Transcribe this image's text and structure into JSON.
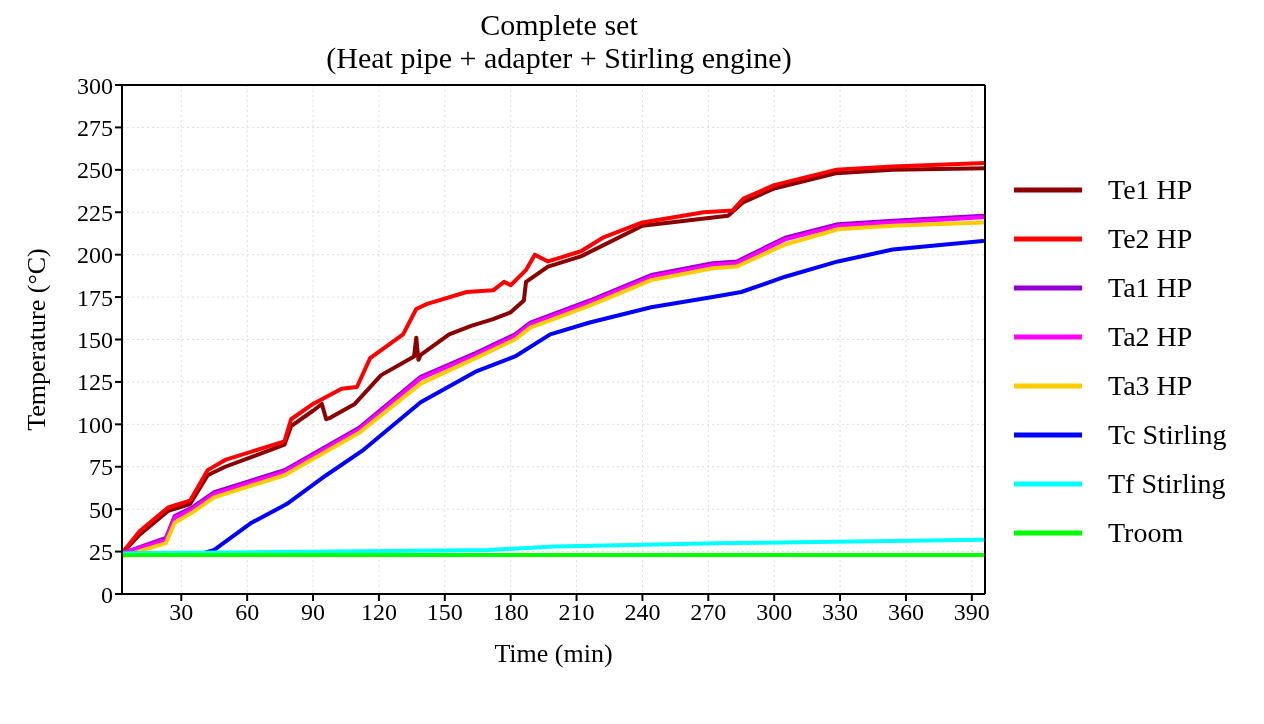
{
  "chart_data": {
    "type": "line",
    "title": "Complete set",
    "subtitle": "(Heat pipe + adapter + Stirling engine)",
    "xlabel": "Time (min)",
    "ylabel": "Temperature (°C)",
    "xlim": [
      3,
      396
    ],
    "xticks": [
      30,
      60,
      90,
      120,
      150,
      180,
      210,
      240,
      270,
      300,
      330,
      360,
      390
    ],
    "ylim": [
      0,
      300
    ],
    "yticks": [
      0,
      25,
      50,
      75,
      100,
      125,
      150,
      175,
      200,
      225,
      250,
      275,
      300
    ],
    "grid": true,
    "legend": "right",
    "series": [
      {
        "name": "Te1 HP",
        "color": "#8b0000",
        "x": [
          3,
          11,
          24,
          34,
          42,
          50,
          77,
          80,
          90,
          94,
          96,
          98,
          109,
          121,
          136,
          137,
          138,
          139,
          152,
          162,
          172,
          180,
          186,
          187,
          197,
          212,
          240,
          279,
          286,
          300,
          328,
          354,
          396
        ],
        "values": [
          24,
          35,
          49,
          53,
          70,
          75,
          88,
          99,
          108,
          112,
          103,
          104,
          112,
          129,
          140,
          151,
          138,
          141,
          153,
          158,
          162,
          166,
          173,
          184,
          193,
          199,
          217,
          223,
          231,
          239,
          248,
          250,
          251
        ]
      },
      {
        "name": "Te2 HP",
        "color": "#ff0000",
        "x": [
          3,
          11,
          24,
          34,
          42,
          50,
          77,
          80,
          90,
          103,
          110,
          116,
          131,
          137,
          142,
          160,
          172,
          177,
          180,
          187,
          191,
          197,
          212,
          222,
          240,
          268,
          281,
          286,
          300,
          328,
          354,
          396
        ],
        "values": [
          24,
          37,
          51,
          55,
          73,
          79,
          90,
          103,
          112,
          121,
          122,
          139,
          153,
          168,
          171,
          178,
          179,
          184,
          182,
          191,
          200,
          196,
          202,
          210,
          219,
          225,
          226,
          233,
          241,
          250,
          252,
          254
        ]
      },
      {
        "name": "Ta1 HP",
        "color": "#9400d3",
        "x": [
          3,
          23,
          27,
          35,
          45,
          77,
          111,
          139,
          164,
          182,
          189,
          216,
          244,
          272,
          283,
          305,
          329,
          354,
          395
        ],
        "values": [
          24,
          33,
          46,
          51,
          60,
          73,
          98,
          128,
          142,
          153,
          160,
          173,
          188,
          195,
          196,
          210,
          218,
          220,
          223
        ]
      },
      {
        "name": "Ta2 HP",
        "color": "#ff00ff",
        "x": [
          3,
          23,
          27,
          35,
          45,
          77,
          111,
          139,
          164,
          182,
          189,
          216,
          244,
          272,
          283,
          305,
          329,
          354,
          395
        ],
        "values": [
          24,
          32,
          45,
          50,
          59,
          72,
          97,
          127,
          141,
          152,
          159,
          172,
          187,
          194,
          195,
          209,
          217,
          219,
          222
        ]
      },
      {
        "name": "Ta3 HP",
        "color": "#ffcc00",
        "x": [
          3,
          23,
          27,
          35,
          45,
          77,
          111,
          139,
          164,
          182,
          189,
          216,
          244,
          272,
          283,
          305,
          329,
          354,
          395
        ],
        "values": [
          22,
          30,
          42,
          48,
          57,
          70,
          95,
          124,
          139,
          150,
          157,
          170,
          185,
          192,
          193,
          206,
          215,
          217,
          219
        ]
      },
      {
        "name": "Tc Stirling",
        "color": "#0000ff",
        "x": [
          3,
          40,
          45,
          62,
          78,
          96,
          113,
          139,
          164,
          182,
          198,
          216,
          244,
          272,
          285,
          305,
          329,
          354,
          395
        ],
        "values": [
          24,
          24,
          26,
          42,
          53,
          70,
          85,
          113,
          131,
          140,
          153,
          160,
          169,
          175,
          178,
          187,
          196,
          203,
          208
        ]
      },
      {
        "name": "Tf Stirling",
        "color": "#00ffff",
        "x": [
          3,
          100,
          170,
          200,
          280,
          395
        ],
        "values": [
          24,
          25,
          26,
          28,
          30,
          32
        ]
      },
      {
        "name": "Troom",
        "color": "#00ff00",
        "x": [
          3,
          100,
          200,
          300,
          395
        ],
        "values": [
          23,
          23,
          23,
          23,
          23
        ]
      }
    ]
  }
}
